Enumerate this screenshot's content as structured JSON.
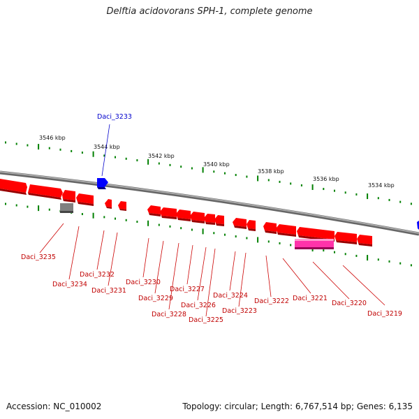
{
  "title": "Delftia acidovorans SPH-1, complete genome",
  "footer": {
    "accession": "Accession: NC_010002",
    "summary": "Topology: circular; Length: 6,767,514 bp; Genes: 6,135"
  },
  "scale_labels": [
    "3546 kbp",
    "3544 kbp",
    "3542 kbp",
    "3540 kbp",
    "3538 kbp",
    "3536 kbp",
    "3534 kbp"
  ],
  "gene_labels": [
    "Daci_3233",
    "Daci_3235",
    "Daci_3234",
    "Daci_3232",
    "Daci_3231",
    "Daci_3230",
    "Daci_3229",
    "Daci_3228",
    "Daci_3227",
    "Daci_3226",
    "Daci_3225",
    "Daci_3224",
    "Daci_3223",
    "Daci_3222",
    "Daci_3221",
    "Daci_3220",
    "Daci_3219"
  ],
  "colors": {
    "forward_gene": "#0000ff",
    "reverse_gene": "#ff0000",
    "pseudo_gene": "#808080",
    "rna_gene": "#ff33aa",
    "backbone": "#888888",
    "tick": "#008000"
  }
}
